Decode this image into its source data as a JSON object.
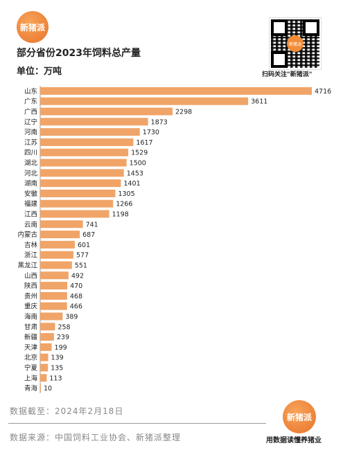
{
  "brand": {
    "logo_text": "新猪派"
  },
  "header": {
    "title": "部分省份2023年饲料总产量",
    "unit": "单位：万吨"
  },
  "qr": {
    "caption": "扫码关注\"新猪派\"",
    "center_text": "新猪派"
  },
  "chart_data": {
    "type": "bar",
    "orientation": "horizontal",
    "title": "部分省份2023年饲料总产量",
    "unit": "万吨",
    "bar_color": "#f0a468",
    "categories": [
      "山东",
      "广东",
      "广西",
      "辽宁",
      "河南",
      "江苏",
      "四川",
      "湖北",
      "河北",
      "湖南",
      "安徽",
      "福建",
      "江西",
      "云南",
      "内蒙古",
      "吉林",
      "浙江",
      "黑龙江",
      "山西",
      "陕西",
      "贵州",
      "重庆",
      "海南",
      "甘肃",
      "新疆",
      "天津",
      "北京",
      "宁夏",
      "上海",
      "青海"
    ],
    "values": [
      4716,
      3611,
      2298,
      1873,
      1730,
      1617,
      1529,
      1500,
      1453,
      1401,
      1305,
      1266,
      1198,
      741,
      687,
      601,
      577,
      551,
      492,
      470,
      468,
      466,
      389,
      258,
      239,
      199,
      139,
      135,
      113,
      10
    ],
    "data_labels": [
      "4716",
      "3611",
      "2298",
      "1873",
      "1730",
      "1617",
      "1529",
      "1500",
      "1453",
      "1401",
      "1305",
      "1266",
      "1198",
      "741",
      "687",
      "601",
      "577",
      "551",
      "492",
      "470",
      "468",
      "466",
      "389",
      "258",
      "239",
      "199",
      "139",
      "135",
      "113",
      "10"
    ]
  },
  "footer": {
    "date": "数据截至：2024年2月18日",
    "source": "数据来源：中国饲料工业协会、新猪派整理",
    "slogan": "用数据读懂养猪业"
  }
}
